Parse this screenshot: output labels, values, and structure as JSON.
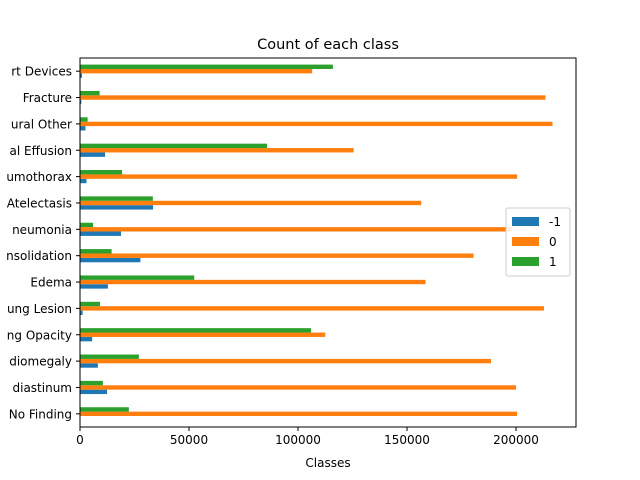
{
  "chart_data": {
    "type": "bar",
    "orientation": "horizontal",
    "title": "Count of each class",
    "xlabel": "Classes",
    "ylabel": "",
    "xlim": [
      0,
      227500
    ],
    "xticks": [
      0,
      50000,
      100000,
      150000,
      200000
    ],
    "xtick_labels": [
      "0",
      "50000",
      "100000",
      "150000",
      "200000"
    ],
    "grid": false,
    "legend_position": "center-right",
    "categories": [
      "Support Devices",
      "Fracture",
      "Pleural Other",
      "Pleural Effusion",
      "Pneumothorax",
      "Atelectasis",
      "Pneumonia",
      "Consolidation",
      "Edema",
      "Lung Lesion",
      "Lung Opacity",
      "Cardiomegaly",
      "Enlarged Cardiomediastinum",
      "No Finding"
    ],
    "category_labels": [
      "rt Devices",
      "Fracture",
      "ural Other",
      "al Effusion",
      "umothorax",
      "Atelectasis",
      "neumonia",
      "nsolidation",
      "Edema",
      "ung Lesion",
      "ng Opacity",
      "diomegaly",
      "diastinum",
      "No Finding"
    ],
    "series": [
      {
        "name": "-1",
        "color": "#1f77b4",
        "values": [
          900,
          600,
          2500,
          11500,
          3000,
          33500,
          18800,
          27700,
          12800,
          1200,
          5600,
          8200,
          12400,
          0
        ]
      },
      {
        "name": "0",
        "color": "#ff7f0e",
        "values": [
          106500,
          213500,
          216700,
          125500,
          200500,
          156500,
          198000,
          180500,
          158500,
          212800,
          112500,
          188500,
          200000,
          200500
        ]
      },
      {
        "name": "1",
        "color": "#2ca02c",
        "values": [
          116000,
          9000,
          3500,
          85800,
          19300,
          33400,
          6000,
          14500,
          52400,
          9200,
          106000,
          27000,
          10500,
          22400
        ]
      }
    ]
  }
}
